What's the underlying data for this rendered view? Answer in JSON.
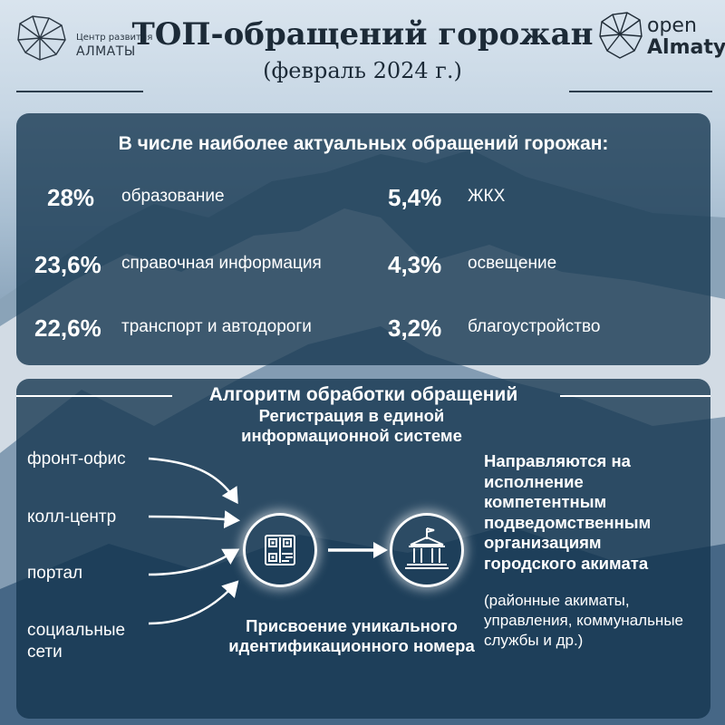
{
  "header": {
    "title": "ТОП-обращений горожан",
    "subtitle": "(февраль 2024 г.)",
    "logo_left": {
      "line1": "Центр развития",
      "line2": "АЛМАТЫ",
      "icon": "geometric-leopard-head-icon"
    },
    "logo_right": {
      "line1": "open",
      "line2": "Almaty",
      "icon": "geometric-leopard-head-icon"
    }
  },
  "stats_panel": {
    "title": "В числе наиболее актуальных обращений горожан:",
    "items": [
      {
        "value": "28%",
        "label": "образование"
      },
      {
        "value": "23,6%",
        "label": "справочная информация"
      },
      {
        "value": "22,6%",
        "label": "транспорт и автодороги"
      },
      {
        "value": "5,4%",
        "label": "ЖКХ"
      },
      {
        "value": "4,3%",
        "label": "освещение"
      },
      {
        "value": "3,2%",
        "label": "благоустройство"
      }
    ]
  },
  "algorithm_panel": {
    "title": "Алгоритм обработки обращений",
    "sources": [
      "фронт-офис",
      "колл-центр",
      "портал",
      "социальные сети"
    ],
    "registration_text": "Регистрация в единой информационной системе",
    "assign_text": "Присвоение уникального идентификационного номера",
    "result_text": "Направляются на исполнение компетентным подведомственным организациям городского акимата",
    "result_note": "(районные акиматы, управления, коммунальные службы и др.)",
    "icons": [
      "qr-code-icon",
      "government-building-icon",
      "arrow-right-icon"
    ]
  },
  "colors": {
    "panel": "#13344e",
    "title_text": "#1c2a37",
    "white": "#ffffff"
  }
}
